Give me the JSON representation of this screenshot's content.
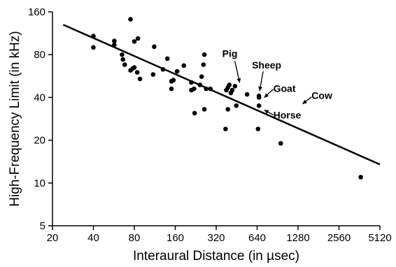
{
  "chart_data": {
    "type": "scatter",
    "xlabel": "Interaural Distance (in µsec)",
    "ylabel": "High-Frequency Limit (in kHz)",
    "x_scale": "log2",
    "y_scale": "log2",
    "xlim": [
      20,
      5120
    ],
    "ylim": [
      5,
      160
    ],
    "x_ticks": [
      20,
      40,
      80,
      160,
      320,
      640,
      1280,
      2560,
      5120
    ],
    "y_ticks": [
      5,
      10,
      20,
      40,
      80,
      160
    ],
    "grid": false,
    "legend": "none",
    "series": [
      {
        "x": [
          40,
          40,
          57,
          57,
          65,
          68,
          66,
          75,
          75,
          80,
          85,
          78,
          80,
          84,
          88,
          110,
          112,
          130,
          140,
          155,
          150,
          150,
          165,
          185,
          210,
          210,
          220,
          222,
          243,
          250,
          262,
          262,
          258,
          270,
          290,
          375,
          390,
          380,
          390,
          410,
          400,
          420,
          440,
          450,
          540,
          650,
          660,
          660,
          660,
          955,
          3700
        ],
        "y": [
          108,
          90,
          100,
          94,
          80,
          68,
          74,
          142,
          62,
          99,
          104,
          64,
          65,
          60,
          54,
          58,
          91,
          63,
          75,
          53,
          46,
          52,
          61,
          67,
          51,
          45,
          46,
          31,
          49,
          56,
          33,
          80,
          68,
          46,
          46,
          24,
          33,
          45,
          47,
          43,
          49,
          45,
          48,
          35,
          42,
          24,
          35,
          40,
          41,
          19,
          11
        ]
      }
    ],
    "fit_line": {
      "x": [
        24,
        5120
      ],
      "y": [
        130,
        13.5
      ]
    },
    "annotations": [
      {
        "label": "Pig",
        "x": 460,
        "y": 48
      },
      {
        "label": "Sheep",
        "x": 660,
        "y": 42
      },
      {
        "label": "Goat",
        "x": 680,
        "y": 39
      },
      {
        "label": "Horse",
        "x": 680,
        "y": 33
      },
      {
        "label": "Cow",
        "x": 1300,
        "y": 36
      }
    ]
  }
}
